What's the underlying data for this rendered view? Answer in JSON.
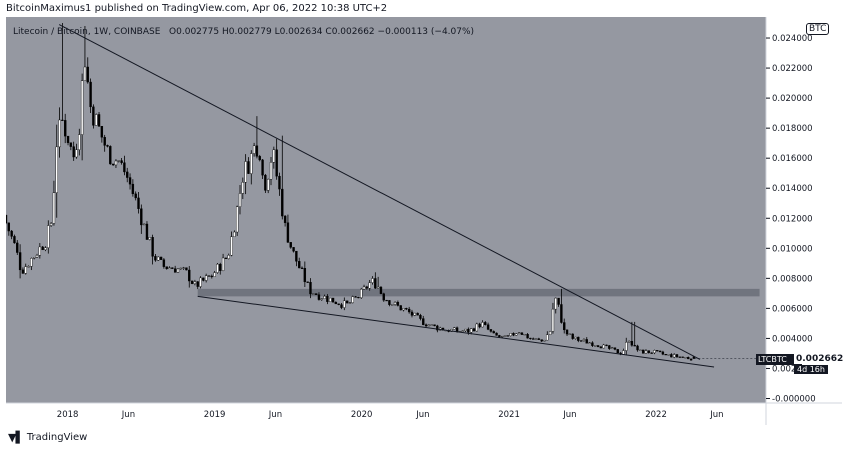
{
  "header": {
    "text": "BitcoinMaximus1 published on TradingView.com, Apr 06, 2022 10:38 UTC+2"
  },
  "legend": {
    "symbol": "Litecoin / Bitcoin, 1W, COINBASE",
    "o_label": "O",
    "o_value": "0.002775",
    "h_label": "H",
    "h_value": "0.002779",
    "l_label": "L",
    "l_value": "0.002634",
    "c_label": "C",
    "c_value": "0.002662",
    "change": "−0.000113 (−4.07%)"
  },
  "currency": "BTC",
  "price_tag": {
    "ticker": "LTCBTC",
    "value": "0.002662",
    "countdown": "4d 16h"
  },
  "footer": {
    "brand": "TradingView"
  },
  "colors": {
    "background": "#9598a1",
    "up": "#ffffff",
    "down": "#000000",
    "line": "#131722",
    "band": "#6a6d78"
  },
  "chart_data": {
    "type": "candlestick",
    "symbol": "LTCBTC",
    "timeframe": "1W",
    "y_ticks": [
      "0.024000",
      "0.022000",
      "0.020000",
      "0.018000",
      "0.016000",
      "0.014000",
      "0.012000",
      "0.010000",
      "0.008000",
      "0.006000",
      "0.004000",
      "0.002000",
      "-0.000000"
    ],
    "y_tick_values": [
      0.024,
      0.022,
      0.02,
      0.018,
      0.016,
      0.014,
      0.012,
      0.01,
      0.008,
      0.006,
      0.004,
      0.002,
      0.0
    ],
    "ylim": [
      -0.0003,
      0.0254
    ],
    "x_ticks": [
      "2018",
      "Jun",
      "2019",
      "Jun",
      "2020",
      "Jun",
      "2021",
      "Jun",
      "2022",
      "Jun"
    ],
    "x_tick_dates": [
      "2018-01-01",
      "2018-06-01",
      "2019-01-01",
      "2019-06-01",
      "2020-01-01",
      "2020-06-01",
      "2021-01-01",
      "2021-06-01",
      "2022-01-01",
      "2022-06-01"
    ],
    "xlim": [
      "2017-08-01",
      "2022-10-01"
    ],
    "price_path": [
      [
        "2017-08-01",
        0.0122
      ],
      [
        "2017-09-01",
        0.01
      ],
      [
        "2017-09-15",
        0.0085
      ],
      [
        "2017-10-01",
        0.009
      ],
      [
        "2017-11-15",
        0.0105
      ],
      [
        "2017-12-01",
        0.012
      ],
      [
        "2017-12-11",
        0.017
      ],
      [
        "2017-12-25",
        0.0185
      ],
      [
        "2018-01-08",
        0.0175
      ],
      [
        "2018-01-22",
        0.016
      ],
      [
        "2018-02-05",
        0.018
      ],
      [
        "2018-02-19",
        0.023
      ],
      [
        "2018-03-05",
        0.0195
      ],
      [
        "2018-03-19",
        0.0185
      ],
      [
        "2018-04-02",
        0.0175
      ],
      [
        "2018-04-16",
        0.0165
      ],
      [
        "2018-05-01",
        0.016
      ],
      [
        "2018-05-15",
        0.0158
      ],
      [
        "2018-06-01",
        0.015
      ],
      [
        "2018-06-15",
        0.014
      ],
      [
        "2018-07-01",
        0.0128
      ],
      [
        "2018-07-20",
        0.0112
      ],
      [
        "2018-08-10",
        0.0095
      ],
      [
        "2018-09-01",
        0.0088
      ],
      [
        "2018-10-01",
        0.0087
      ],
      [
        "2018-11-01",
        0.0083
      ],
      [
        "2018-11-20",
        0.0075
      ],
      [
        "2018-12-10",
        0.0078
      ],
      [
        "2019-01-01",
        0.0082
      ],
      [
        "2019-01-20",
        0.0088
      ],
      [
        "2019-02-10",
        0.0095
      ],
      [
        "2019-03-01",
        0.012
      ],
      [
        "2019-03-20",
        0.015
      ],
      [
        "2019-04-05",
        0.0158
      ],
      [
        "2019-04-20",
        0.017
      ],
      [
        "2019-05-01",
        0.0165
      ],
      [
        "2019-05-10",
        0.014
      ],
      [
        "2019-05-20",
        0.015
      ],
      [
        "2019-06-01",
        0.0165
      ],
      [
        "2019-06-10",
        0.015
      ],
      [
        "2019-06-20",
        0.0135
      ],
      [
        "2019-07-01",
        0.0115
      ],
      [
        "2019-07-20",
        0.0098
      ],
      [
        "2019-08-10",
        0.0085
      ],
      [
        "2019-09-01",
        0.0072
      ],
      [
        "2019-10-01",
        0.0068
      ],
      [
        "2019-11-01",
        0.0065
      ],
      [
        "2019-12-01",
        0.0062
      ],
      [
        "2020-01-01",
        0.0068
      ],
      [
        "2020-02-01",
        0.0078
      ],
      [
        "2020-02-15",
        0.0076
      ],
      [
        "2020-03-01",
        0.0068
      ],
      [
        "2020-04-01",
        0.0062
      ],
      [
        "2020-05-01",
        0.0058
      ],
      [
        "2020-06-01",
        0.0052
      ],
      [
        "2020-07-01",
        0.0048
      ],
      [
        "2020-08-01",
        0.0046
      ],
      [
        "2020-09-01",
        0.0045
      ],
      [
        "2020-10-01",
        0.0045
      ],
      [
        "2020-11-01",
        0.005
      ],
      [
        "2020-12-01",
        0.0042
      ],
      [
        "2021-01-01",
        0.004
      ],
      [
        "2021-02-01",
        0.0045
      ],
      [
        "2021-03-01",
        0.004
      ],
      [
        "2021-04-01",
        0.0038
      ],
      [
        "2021-04-20",
        0.0045
      ],
      [
        "2021-05-01",
        0.0068
      ],
      [
        "2021-05-10",
        0.0062
      ],
      [
        "2021-05-24",
        0.0045
      ],
      [
        "2021-06-15",
        0.004
      ],
      [
        "2021-07-15",
        0.0038
      ],
      [
        "2021-08-15",
        0.0036
      ],
      [
        "2021-09-15",
        0.0033
      ],
      [
        "2021-10-15",
        0.003
      ],
      [
        "2021-11-01",
        0.004
      ],
      [
        "2021-11-15",
        0.0034
      ],
      [
        "2021-12-01",
        0.0031
      ],
      [
        "2021-12-15",
        0.0031
      ],
      [
        "2022-01-01",
        0.0031
      ],
      [
        "2022-02-01",
        0.0029
      ],
      [
        "2022-03-01",
        0.0028
      ],
      [
        "2022-04-06",
        0.002662
      ]
    ],
    "spikes": [
      [
        "2017-12-18",
        0.025
      ],
      [
        "2018-02-12",
        0.0248
      ],
      [
        "2019-04-15",
        0.0188
      ],
      [
        "2019-06-20",
        0.0175
      ],
      [
        "2020-02-10",
        0.0081
      ],
      [
        "2021-05-10",
        0.0073
      ],
      [
        "2021-11-05",
        0.0051
      ]
    ],
    "trendlines": [
      {
        "from": [
          "2017-12-11",
          0.0249
        ],
        "to": [
          "2022-04-20",
          0.0026
        ]
      },
      {
        "from": [
          "2018-11-20",
          0.0068
        ],
        "to": [
          "2022-05-25",
          0.0021
        ]
      }
    ],
    "resistance_band": {
      "from": "2018-11-20",
      "to": "2022-09-15",
      "low": 0.0068,
      "high": 0.0073
    },
    "last": {
      "date": "2022-04-06",
      "open": 0.002775,
      "high": 0.002779,
      "low": 0.002634,
      "close": 0.002662
    }
  }
}
